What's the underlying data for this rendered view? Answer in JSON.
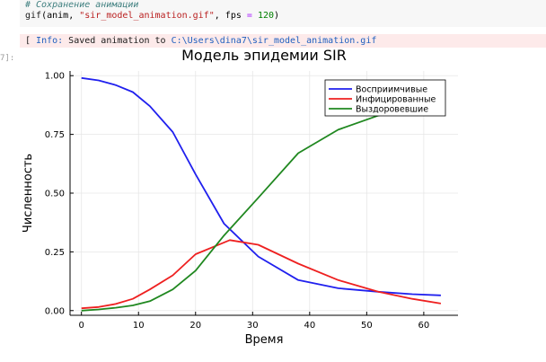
{
  "code": {
    "comment": "# Сохранение анимации",
    "fn": "gif",
    "arg1": "anim",
    "filename": "\"sir_model_animation.gif\"",
    "fps_kw": "fps",
    "fps_val": "120"
  },
  "output": {
    "prefix": "[ ",
    "tag": "Info:",
    "text": " Saved animation to ",
    "path": "C:\\Users\\dina7\\sir_model_animation.gif"
  },
  "prompt": "7]:",
  "colors": {
    "blue": "#2020ee",
    "red": "#ee2020",
    "green": "#208820"
  },
  "chart_data": {
    "type": "line",
    "title": "Модель эпидемии SIR",
    "xlabel": "Время",
    "ylabel": "Численность",
    "xlim": [
      -2,
      66
    ],
    "ylim": [
      -0.02,
      1.02
    ],
    "xticks": [
      0,
      10,
      20,
      30,
      40,
      50,
      60
    ],
    "yticks": [
      0.0,
      0.25,
      0.5,
      0.75,
      1.0
    ],
    "ytick_labels": [
      "0.00",
      "0.25",
      "0.50",
      "0.75",
      "1.00"
    ],
    "grid": true,
    "legend": "top-right",
    "series": [
      {
        "name": "Восприимчивые",
        "color": "#2020ee",
        "x": [
          0,
          3,
          6,
          9,
          12,
          16,
          20,
          25,
          31,
          38,
          45,
          52,
          58,
          63
        ],
        "y": [
          0.99,
          0.98,
          0.96,
          0.93,
          0.87,
          0.76,
          0.58,
          0.37,
          0.23,
          0.13,
          0.095,
          0.08,
          0.07,
          0.065
        ]
      },
      {
        "name": "Инфицированные",
        "color": "#ee2020",
        "x": [
          0,
          3,
          6,
          9,
          12,
          16,
          20,
          26,
          31,
          38,
          45,
          52,
          58,
          63
        ],
        "y": [
          0.01,
          0.015,
          0.028,
          0.05,
          0.09,
          0.15,
          0.24,
          0.3,
          0.28,
          0.2,
          0.13,
          0.08,
          0.05,
          0.03
        ]
      },
      {
        "name": "Выздоровевшие",
        "color": "#208820",
        "x": [
          0,
          3,
          6,
          9,
          12,
          16,
          20,
          25,
          31,
          38,
          45,
          52,
          58,
          63
        ],
        "y": [
          0.0,
          0.005,
          0.012,
          0.022,
          0.04,
          0.09,
          0.17,
          0.32,
          0.48,
          0.67,
          0.77,
          0.83,
          0.87,
          0.9
        ]
      }
    ]
  }
}
